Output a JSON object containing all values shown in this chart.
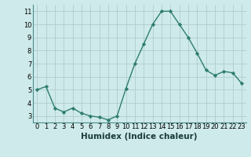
{
  "x": [
    0,
    1,
    2,
    3,
    4,
    5,
    6,
    7,
    8,
    9,
    10,
    11,
    12,
    13,
    14,
    15,
    16,
    17,
    18,
    19,
    20,
    21,
    22,
    23
  ],
  "y": [
    5.0,
    5.25,
    3.6,
    3.3,
    3.6,
    3.2,
    3.0,
    2.9,
    2.7,
    3.0,
    5.1,
    7.0,
    8.5,
    10.0,
    11.0,
    11.0,
    10.0,
    9.0,
    7.8,
    6.5,
    6.1,
    6.4,
    6.3,
    5.5
  ],
  "line_color": "#2e7d6e",
  "marker": "D",
  "marker_size": 2.2,
  "bg_color": "#ceeaea",
  "grid_color": "#b0cccc",
  "xlabel": "Humidex (Indice chaleur)",
  "xlabel_fontsize": 7.5,
  "ylim": [
    2.5,
    11.5
  ],
  "xlim": [
    -0.5,
    23.5
  ],
  "yticks": [
    3,
    4,
    5,
    6,
    7,
    8,
    9,
    10,
    11
  ],
  "xticks": [
    0,
    1,
    2,
    3,
    4,
    5,
    6,
    7,
    8,
    9,
    10,
    11,
    12,
    13,
    14,
    15,
    16,
    17,
    18,
    19,
    20,
    21,
    22,
    23
  ],
  "tick_fontsize": 6,
  "linewidth": 1.0
}
